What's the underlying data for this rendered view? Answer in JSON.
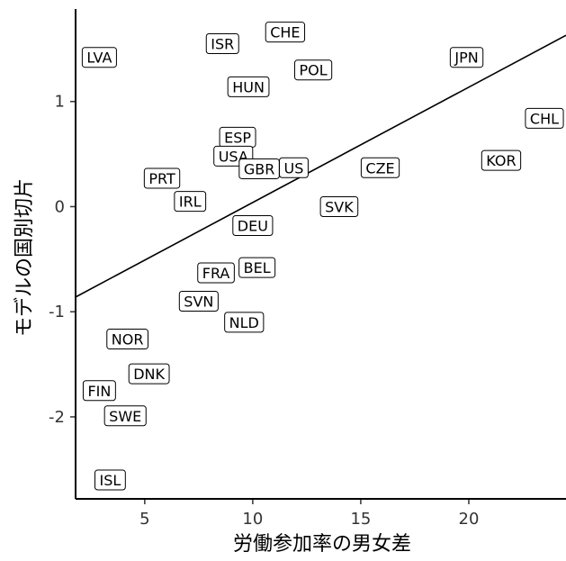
{
  "chart_data": {
    "type": "scatter",
    "xlabel": "労働参加率の男女差",
    "ylabel": "モデルの国別切片",
    "xlim": [
      1.8,
      24.5
    ],
    "ylim": [
      -2.78,
      1.88
    ],
    "xticks": [
      5,
      10,
      15,
      20
    ],
    "yticks": [
      -2,
      -1,
      0,
      1
    ],
    "trend_line": {
      "x0": 1.8,
      "y0": -0.86,
      "x1": 24.5,
      "y1": 1.63
    },
    "points": [
      {
        "label": "LVA",
        "x": 2.9,
        "y": 1.42
      },
      {
        "label": "ISR",
        "x": 8.6,
        "y": 1.55
      },
      {
        "label": "CHE",
        "x": 11.5,
        "y": 1.66
      },
      {
        "label": "POL",
        "x": 12.8,
        "y": 1.3
      },
      {
        "label": "HUN",
        "x": 9.8,
        "y": 1.14
      },
      {
        "label": "JPN",
        "x": 19.9,
        "y": 1.42
      },
      {
        "label": "CHL",
        "x": 23.5,
        "y": 0.84
      },
      {
        "label": "KOR",
        "x": 21.5,
        "y": 0.44
      },
      {
        "label": "CZE",
        "x": 15.9,
        "y": 0.37
      },
      {
        "label": "ESP",
        "x": 9.3,
        "y": 0.66
      },
      {
        "label": "USA",
        "x": 9.1,
        "y": 0.48
      },
      {
        "label": "GBR",
        "x": 10.3,
        "y": 0.36
      },
      {
        "label": "US",
        "x": 11.9,
        "y": 0.37
      },
      {
        "label": "PRT",
        "x": 5.8,
        "y": 0.27
      },
      {
        "label": "IRL",
        "x": 7.1,
        "y": 0.05
      },
      {
        "label": "SVK",
        "x": 14.0,
        "y": 0.0
      },
      {
        "label": "DEU",
        "x": 10.0,
        "y": -0.18
      },
      {
        "label": "BEL",
        "x": 10.2,
        "y": -0.58
      },
      {
        "label": "FRA",
        "x": 8.3,
        "y": -0.63
      },
      {
        "label": "SVN",
        "x": 7.5,
        "y": -0.9
      },
      {
        "label": "NLD",
        "x": 9.6,
        "y": -1.1
      },
      {
        "label": "NOR",
        "x": 4.2,
        "y": -1.26
      },
      {
        "label": "DNK",
        "x": 5.2,
        "y": -1.59
      },
      {
        "label": "FIN",
        "x": 2.9,
        "y": -1.75
      },
      {
        "label": "SWE",
        "x": 4.1,
        "y": -1.99
      },
      {
        "label": "ISL",
        "x": 3.4,
        "y": -2.6
      }
    ],
    "grid": false,
    "legend": "none"
  }
}
